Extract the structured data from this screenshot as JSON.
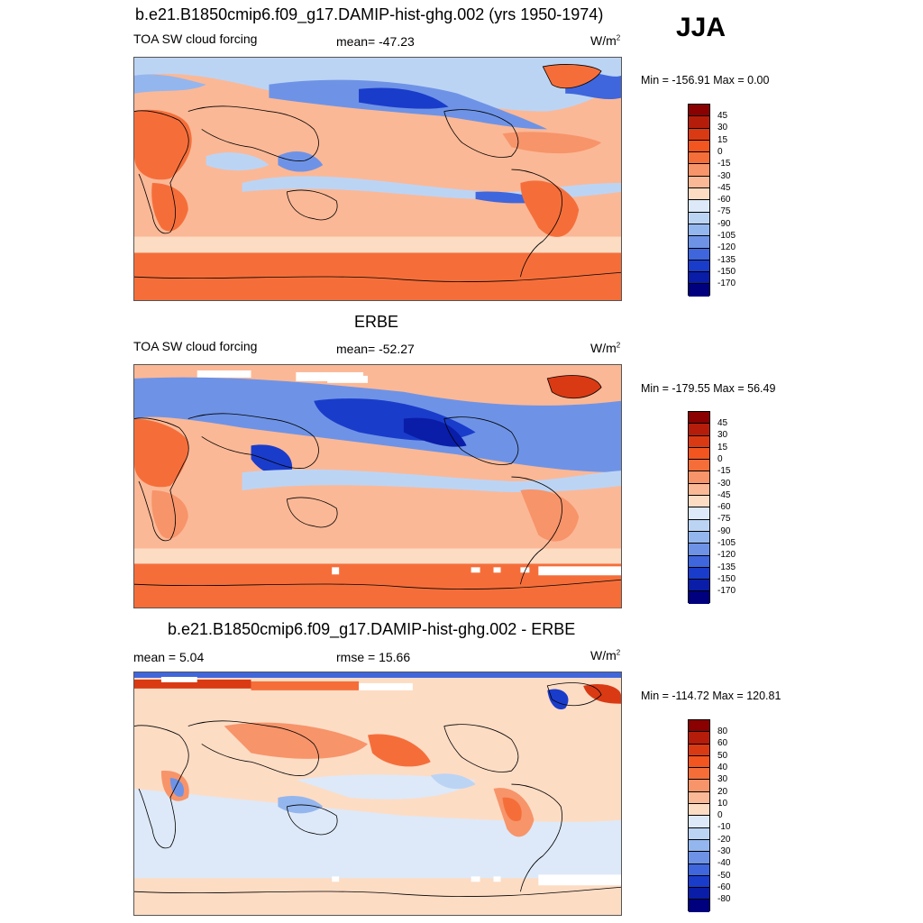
{
  "season": "JJA",
  "panels": [
    {
      "title": "b.e21.B1850cmip6.f09_g17.DAMIP-hist-ghg.002 (yrs 1950-1974)",
      "left_label": "TOA SW cloud forcing",
      "center_label": "mean= -47.23",
      "units": "W/m",
      "units_sup": "2",
      "minmax": "Min = -156.91 Max =   0.00",
      "colorbar_ticks": [
        "45",
        "30",
        "15",
        "0",
        "-15",
        "-30",
        "-45",
        "-60",
        "-75",
        "-90",
        "-105",
        "-120",
        "-135",
        "-150",
        "-170"
      ]
    },
    {
      "title": "ERBE",
      "left_label": "TOA SW cloud forcing",
      "center_label": "mean= -52.27",
      "units": "W/m",
      "units_sup": "2",
      "minmax": "Min = -179.55 Max =  56.49",
      "colorbar_ticks": [
        "45",
        "30",
        "15",
        "0",
        "-15",
        "-30",
        "-45",
        "-60",
        "-75",
        "-90",
        "-105",
        "-120",
        "-135",
        "-150",
        "-170"
      ]
    },
    {
      "title": "b.e21.B1850cmip6.f09_g17.DAMIP-hist-ghg.002 - ERBE",
      "left_label": "mean =   5.04",
      "center_label": "rmse =  15.66",
      "units": "W/m",
      "units_sup": "2",
      "minmax": "Min = -114.72 Max = 120.81",
      "colorbar_ticks": [
        "80",
        "60",
        "50",
        "40",
        "30",
        "20",
        "10",
        "0",
        "-10",
        "-20",
        "-30",
        "-40",
        "-50",
        "-60",
        "-80"
      ]
    }
  ],
  "colorbar_colors": [
    "#8b0000",
    "#b51d0a",
    "#d93a14",
    "#f2551f",
    "#f56e3a",
    "#f7946a",
    "#fbb896",
    "#fddcc4",
    "#dde9f8",
    "#bcd4f4",
    "#94b6ee",
    "#6e93e6",
    "#3f66dc",
    "#1a3ccb",
    "#0a1da8",
    "#00007f"
  ],
  "colors": {
    "land_outline": "#000000",
    "missing": "#ffffff"
  }
}
